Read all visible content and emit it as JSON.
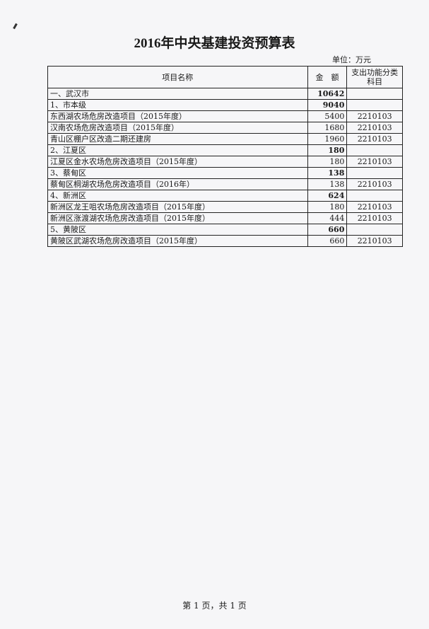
{
  "title": "2016年中央基建投资预算表",
  "unit": "单位：万元",
  "table": {
    "headers": [
      "项目名称",
      "金　额",
      "支出功能分类科目"
    ],
    "rows": [
      {
        "name": "一、武汉市",
        "amount": "10642",
        "code": ""
      },
      {
        "name": "1、市本级",
        "amount": "9040",
        "code": ""
      },
      {
        "name": "东西湖农场危房改造项目（2015年度）",
        "amount": "5400",
        "code": "2210103"
      },
      {
        "name": "汉南农场危房改造项目（2015年度）",
        "amount": "1680",
        "code": "2210103"
      },
      {
        "name": "青山区棚户区改造二期还建房",
        "amount": "1960",
        "code": "2210103"
      },
      {
        "name": "2、江夏区",
        "amount": "180",
        "code": ""
      },
      {
        "name": "江夏区金水农场危房改造项目（2015年度）",
        "amount": "180",
        "code": "2210103"
      },
      {
        "name": "3、蔡甸区",
        "amount": "138",
        "code": ""
      },
      {
        "name": "蔡甸区桐湖农场危房改造项目（2016年）",
        "amount": "138",
        "code": "2210103"
      },
      {
        "name": "4、新洲区",
        "amount": "624",
        "code": ""
      },
      {
        "name": "新洲区龙王咀农场危房改造项目（2015年度）",
        "amount": "180",
        "code": "2210103"
      },
      {
        "name": "新洲区涨渡湖农场危房改造项目（2015年度）",
        "amount": "444",
        "code": "2210103"
      },
      {
        "name": "5、黄陂区",
        "amount": "660",
        "code": ""
      },
      {
        "name": "黄陂区武湖农场危房改造项目（2015年度）",
        "amount": "660",
        "code": "2210103"
      }
    ]
  },
  "footer": "第 1 页，共 1 页"
}
